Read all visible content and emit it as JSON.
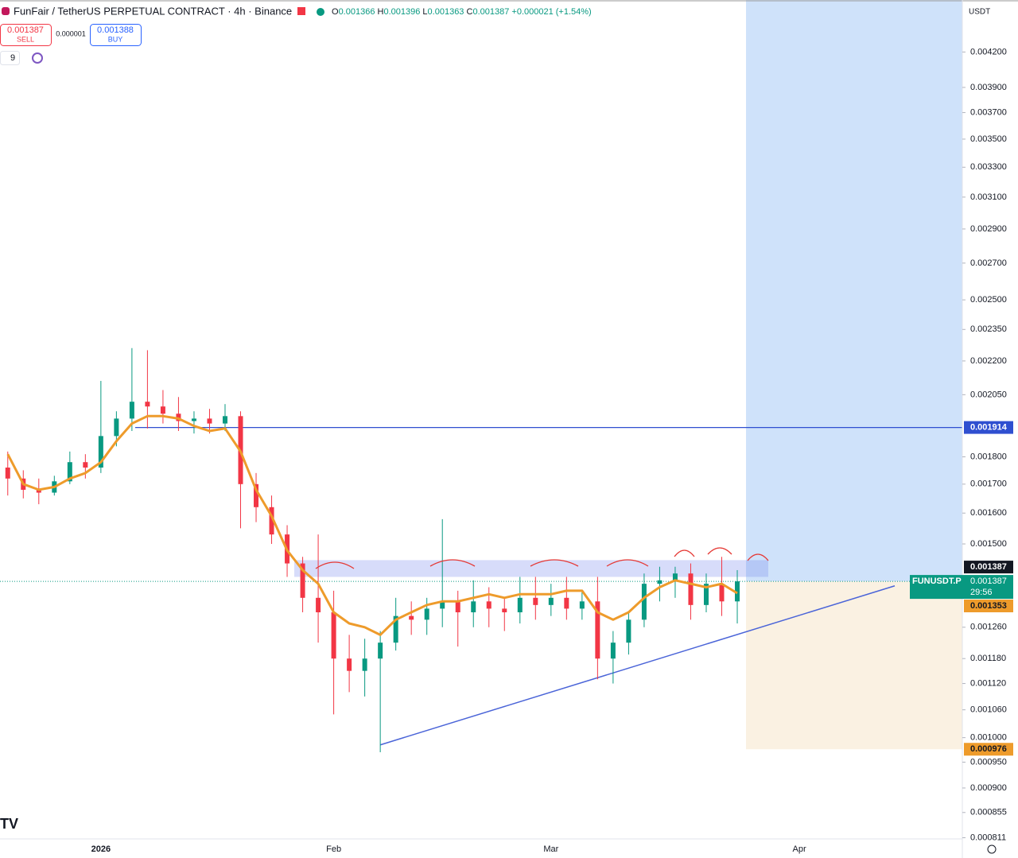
{
  "header": {
    "title": "FunFair / TetherUS PERPETUAL CONTRACT · 4h · Binance",
    "ohlc": [
      {
        "key": "O",
        "value": "0.001366"
      },
      {
        "key": "H",
        "value": "0.001396"
      },
      {
        "key": "L",
        "value": "0.001363"
      },
      {
        "key": "C",
        "value": "0.001387"
      }
    ],
    "change": "+0.000021 (+1.54%)"
  },
  "trade": {
    "sell_price": "0.001387",
    "sell_label": "SELL",
    "spread": "0.000001",
    "buy_price": "0.001388",
    "buy_label": "BUY"
  },
  "indicators": "9",
  "currency": "USDT",
  "chart_data": {
    "type": "candlestick",
    "log_scale": true,
    "grid": false,
    "up_color": "#089981",
    "down_color": "#f23645",
    "categories": [
      null,
      null,
      null,
      null,
      null,
      null,
      "2026",
      null,
      null,
      null,
      null,
      null,
      null,
      null,
      null,
      null,
      null,
      null,
      null,
      null,
      null,
      "Feb",
      null,
      null,
      null,
      null,
      null,
      null,
      null,
      null,
      null,
      null,
      null,
      null,
      null,
      "Mar",
      null,
      null,
      null,
      null,
      null,
      null,
      null,
      null,
      null,
      null,
      null,
      null,
      null,
      null,
      null,
      "Apr",
      null,
      null,
      null,
      null,
      null,
      null,
      null,
      null,
      null,
      null
    ],
    "open": [
      0.00176,
      0.00172,
      0.00168,
      0.00167,
      0.00171,
      0.00178,
      0.00176,
      0.00188,
      0.00195,
      0.00202,
      0.002,
      0.00197,
      0.00194,
      0.00195,
      0.00193,
      0.00196,
      0.0017,
      0.00162,
      0.00153,
      0.00144,
      0.00134,
      0.0013,
      0.00118,
      0.00115,
      0.00118,
      0.00122,
      0.00129,
      0.00128,
      0.00131,
      0.00133,
      0.0013,
      0.00133,
      0.00131,
      0.0013,
      0.00134,
      0.00132,
      0.00134,
      0.00131,
      0.00133,
      0.00118,
      0.00122,
      0.00128,
      0.00138,
      0.00139,
      0.00141,
      0.00132,
      0.00138,
      0.00133,
      null,
      null,
      null,
      null,
      null,
      null,
      null,
      null,
      null,
      null,
      null,
      null,
      null,
      null
    ],
    "high": [
      0.00182,
      0.00175,
      0.00172,
      0.00173,
      0.00182,
      0.00181,
      0.00211,
      0.00198,
      0.00226,
      0.00225,
      0.00207,
      0.00204,
      0.00198,
      0.00199,
      0.00201,
      0.00198,
      0.00174,
      0.00166,
      0.00156,
      0.00146,
      0.00153,
      0.00136,
      0.00124,
      0.00123,
      0.00125,
      0.00134,
      0.00133,
      0.00134,
      0.00158,
      0.00136,
      0.00139,
      0.00137,
      0.00134,
      0.0014,
      0.0014,
      0.00138,
      0.0014,
      0.00136,
      0.0014,
      0.00125,
      0.0013,
      0.00141,
      0.00143,
      0.00143,
      0.00144,
      0.00141,
      0.00146,
      0.00142,
      null,
      null,
      null,
      null,
      null,
      null,
      null,
      null,
      null,
      null,
      null,
      null,
      null,
      null
    ],
    "low": [
      0.00166,
      0.00165,
      0.00163,
      0.00166,
      0.0017,
      0.00172,
      0.00174,
      0.00184,
      0.0019,
      0.00191,
      0.00193,
      0.0019,
      0.00189,
      0.00189,
      0.0019,
      0.00155,
      0.00157,
      0.0015,
      0.0014,
      0.0013,
      0.00122,
      0.00105,
      0.0011,
      0.00109,
      0.00097,
      0.0012,
      0.00124,
      0.00124,
      0.00126,
      0.00121,
      0.00126,
      0.00126,
      0.00125,
      0.00127,
      0.00128,
      0.00129,
      0.00128,
      0.00128,
      0.00113,
      0.00112,
      0.00119,
      0.00126,
      0.00133,
      0.00134,
      0.00128,
      0.0013,
      0.00129,
      0.00127,
      null,
      null,
      null,
      null,
      null,
      null,
      null,
      null,
      null,
      null,
      null,
      null,
      null,
      null
    ],
    "close": [
      0.00172,
      0.00168,
      0.00167,
      0.00171,
      0.00178,
      0.00176,
      0.00188,
      0.00195,
      0.00202,
      0.002,
      0.00197,
      0.00194,
      0.00195,
      0.00193,
      0.00196,
      0.0017,
      0.00162,
      0.00153,
      0.00144,
      0.00134,
      0.0013,
      0.00118,
      0.00115,
      0.00118,
      0.00122,
      0.00129,
      0.00128,
      0.00131,
      0.00133,
      0.0013,
      0.00133,
      0.00131,
      0.0013,
      0.00134,
      0.00132,
      0.00134,
      0.00131,
      0.00133,
      0.00118,
      0.00122,
      0.00128,
      0.00138,
      0.00139,
      0.00141,
      0.00132,
      0.00138,
      0.00133,
      0.001387,
      null,
      null,
      null,
      null,
      null,
      null,
      null,
      null,
      null,
      null,
      null,
      null,
      null,
      null
    ],
    "moving_average": {
      "color": "#ee9b2b",
      "values": [
        0.00181,
        0.0017,
        0.00168,
        0.00169,
        0.00172,
        0.00174,
        0.00178,
        0.00186,
        0.00193,
        0.00196,
        0.00196,
        0.00195,
        0.00192,
        0.0019,
        0.00191,
        0.00182,
        0.00168,
        0.00159,
        0.00148,
        0.00142,
        0.00138,
        0.0013,
        0.00127,
        0.00126,
        0.00124,
        0.00128,
        0.0013,
        0.00132,
        0.00133,
        0.00133,
        0.00134,
        0.00135,
        0.00134,
        0.00135,
        0.00135,
        0.00135,
        0.00136,
        0.00136,
        0.0013,
        0.00128,
        0.0013,
        0.00134,
        0.00137,
        0.00139,
        0.00138,
        0.00137,
        0.00138,
        0.001353,
        null,
        null,
        null,
        null,
        null,
        null,
        null,
        null,
        null,
        null,
        null,
        null,
        null,
        null
      ]
    },
    "hline": {
      "value": 0.001914,
      "color": "#2f4fd0"
    },
    "zone": {
      "low": 0.0014,
      "high": 0.00145
    },
    "trendline": {
      "start": 0.000985,
      "end": 0.001374,
      "color": "#4a64d8"
    },
    "position": {
      "entry": 0.001387,
      "stop": 0.000976
    },
    "symbol_label": "FUNUSDT.P",
    "countdown": "29:56",
    "ylim": [
      0.000809,
      0.004683
    ],
    "yticks": [
      {
        "value": 0.0042,
        "label": "0.004200"
      },
      {
        "value": 0.0039,
        "label": "0.003900"
      },
      {
        "value": 0.0037,
        "label": "0.003700"
      },
      {
        "value": 0.0035,
        "label": "0.003500"
      },
      {
        "value": 0.0033,
        "label": "0.003300"
      },
      {
        "value": 0.0031,
        "label": "0.003100"
      },
      {
        "value": 0.0029,
        "label": "0.002900"
      },
      {
        "value": 0.0027,
        "label": "0.002700"
      },
      {
        "value": 0.0025,
        "label": "0.002500"
      },
      {
        "value": 0.00235,
        "label": "0.002350"
      },
      {
        "value": 0.0022,
        "label": "0.002200"
      },
      {
        "value": 0.00205,
        "label": "0.002050"
      },
      {
        "value": 0.0018,
        "label": "0.001800"
      },
      {
        "value": 0.0017,
        "label": "0.001700"
      },
      {
        "value": 0.0016,
        "label": "0.001600"
      },
      {
        "value": 0.0015,
        "label": "0.001500"
      },
      {
        "value": 0.00126,
        "label": "0.001260"
      },
      {
        "value": 0.00118,
        "label": "0.001180"
      },
      {
        "value": 0.00112,
        "label": "0.001120"
      },
      {
        "value": 0.00106,
        "label": "0.001060"
      },
      {
        "value": 0.001,
        "label": "0.001000"
      },
      {
        "value": 0.00095,
        "label": "0.000950"
      },
      {
        "value": 0.0009,
        "label": "0.000900"
      },
      {
        "value": 0.000855,
        "label": "0.000855"
      },
      {
        "value": 0.000811,
        "label": "0.000811"
      }
    ]
  }
}
